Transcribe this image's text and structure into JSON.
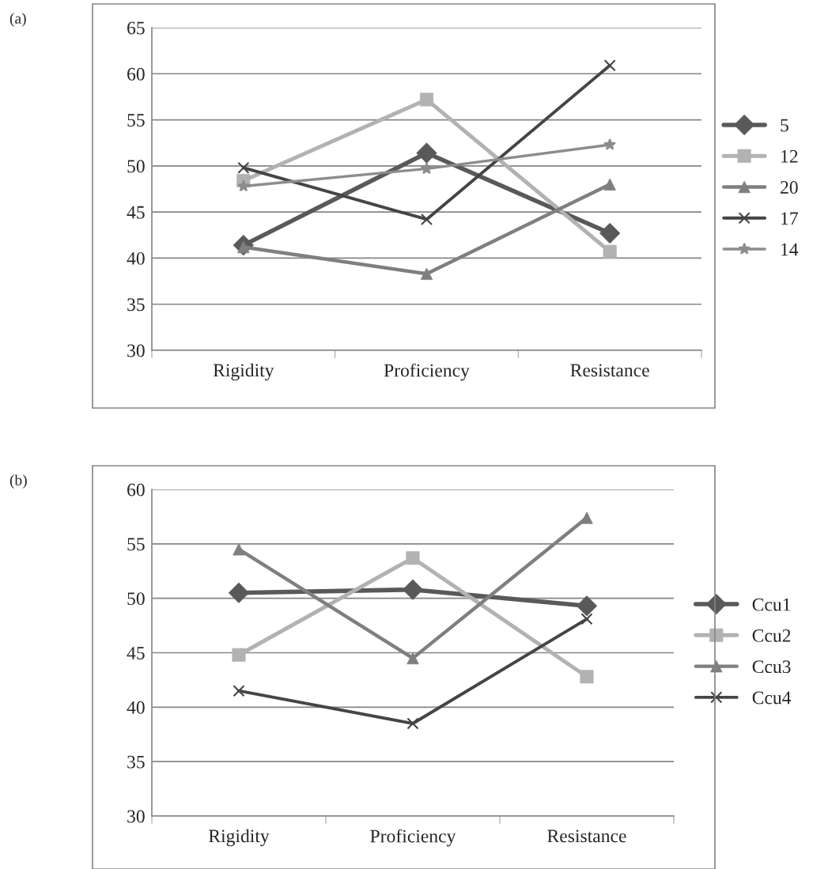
{
  "chart_data": [
    {
      "type": "line",
      "annotations": [
        "(a)"
      ],
      "categories": [
        "Rigidity",
        "Proficiency",
        "Resistance"
      ],
      "series": [
        {
          "name": "5",
          "color": "#595959",
          "marker": "diamond",
          "values": [
            41.4,
            51.4,
            42.7
          ]
        },
        {
          "name": "12",
          "color": "#b2b2b2",
          "marker": "square",
          "values": [
            48.4,
            57.2,
            40.7
          ]
        },
        {
          "name": "20",
          "color": "#7f7f7f",
          "marker": "triangle",
          "values": [
            41.2,
            38.3,
            48.0
          ]
        },
        {
          "name": "17",
          "color": "#454545",
          "marker": "cross",
          "values": [
            49.8,
            44.2,
            60.9
          ]
        },
        {
          "name": "14",
          "color": "#8c8c8c",
          "marker": "star",
          "values": [
            47.8,
            49.7,
            52.3
          ]
        }
      ],
      "ylim": [
        30,
        65
      ],
      "yticks": [
        30,
        35,
        40,
        45,
        50,
        55,
        60,
        65
      ],
      "grid": "y",
      "legend": "right",
      "line_style": "solid"
    },
    {
      "type": "line",
      "annotations": [
        "(b)"
      ],
      "categories": [
        "Rigidity",
        "Proficiency",
        "Resistance"
      ],
      "series": [
        {
          "name": "Ccu1",
          "color": "#595959",
          "marker": "diamond",
          "values": [
            50.5,
            50.8,
            49.3
          ]
        },
        {
          "name": "Ccu2",
          "color": "#b2b2b2",
          "marker": "square",
          "values": [
            44.8,
            53.7,
            42.8
          ]
        },
        {
          "name": "Ccu3",
          "color": "#7f7f7f",
          "marker": "triangle",
          "values": [
            54.5,
            44.5,
            57.4
          ]
        },
        {
          "name": "Ccu4",
          "color": "#454545",
          "marker": "cross",
          "values": [
            41.5,
            38.5,
            48.1
          ]
        }
      ],
      "ylim": [
        30,
        60
      ],
      "yticks": [
        30,
        35,
        40,
        45,
        50,
        55,
        60
      ],
      "grid": "y",
      "legend": "right",
      "line_style": "solid"
    }
  ]
}
